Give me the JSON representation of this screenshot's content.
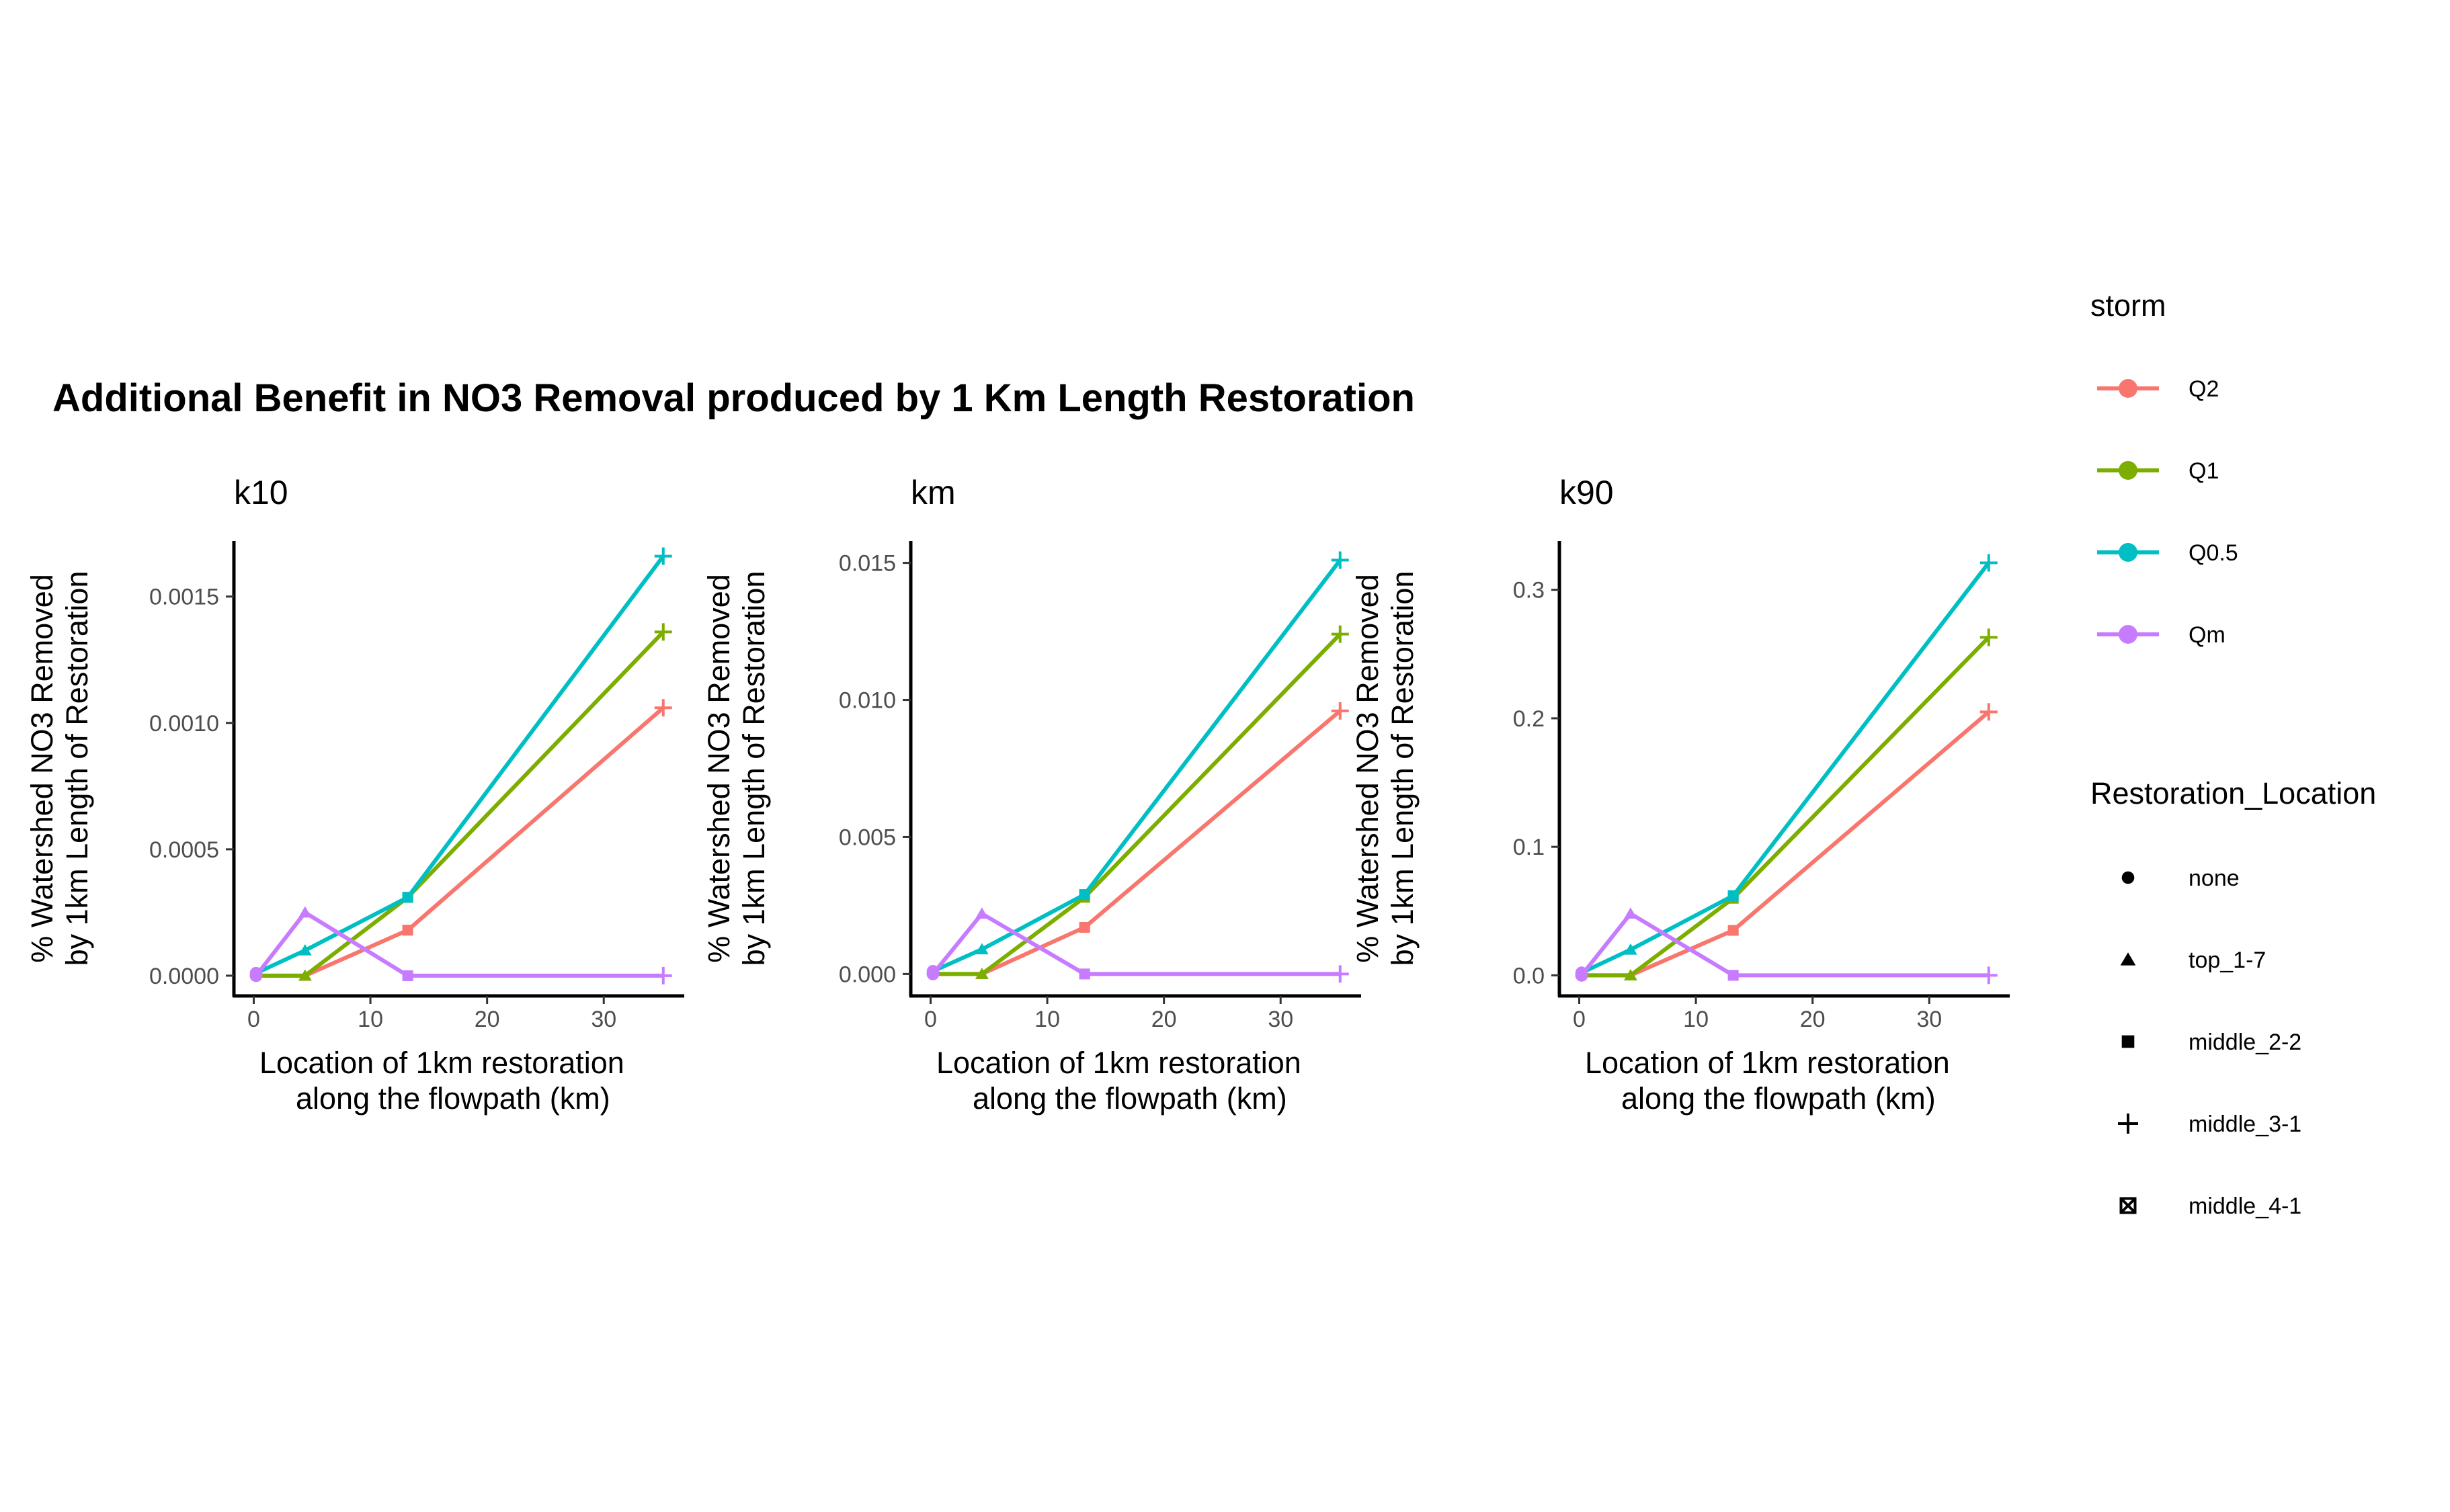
{
  "chart_data": {
    "type": "line",
    "title": "Additional Benefit in NO3 Removal produced by 1 Km Length Restoration",
    "x": [
      0.2,
      4.4,
      13.2,
      35.1
    ],
    "x_ticks": [
      "0",
      "10",
      "20",
      "30"
    ],
    "xlim": [
      -1.7,
      36.9
    ],
    "xlabel": "Location of 1km restoration\n    along the flowpath (km)",
    "ylabel": "% Watershed NO3 Removed\nby 1km Length of Restoration",
    "point_shapes": [
      "top_1-7",
      "middle_2-2",
      "middle_3-1",
      "middle_4-1"
    ],
    "point_shape_note": "Shape per point follows x position; the Qm series at x=4.4 is drawn with the middle_2-2 square. The first point of every series is drawn as a filled circle in the Qm colour on top.",
    "panels": [
      {
        "name": "k10",
        "ylim": [
          -8e-05,
          0.00172
        ],
        "y_ticks": [
          "0.0000",
          "0.0005",
          "0.0010",
          "0.0015"
        ],
        "series": [
          {
            "name": "Q2",
            "values": [
              0,
              0,
              0.00018,
              0.00106
            ]
          },
          {
            "name": "Q1",
            "values": [
              0,
              0,
              0.00031,
              0.00136
            ]
          },
          {
            "name": "Q0.5",
            "values": [
              1e-05,
              0.0001,
              0.00031,
              0.00166
            ]
          },
          {
            "name": "Qm",
            "values": [
              0,
              0.00025,
              0,
              0
            ]
          }
        ]
      },
      {
        "name": "km",
        "ylim": [
          -0.0008,
          0.0158
        ],
        "y_ticks": [
          "0.000",
          "0.005",
          "0.010",
          "0.015"
        ],
        "series": [
          {
            "name": "Q2",
            "values": [
              0,
              0,
              0.0017,
              0.0096
            ]
          },
          {
            "name": "Q1",
            "values": [
              0,
              0,
              0.0028,
              0.0124
            ]
          },
          {
            "name": "Q0.5",
            "values": [
              0.0001,
              0.0009,
              0.0029,
              0.0151
            ]
          },
          {
            "name": "Qm",
            "values": [
              0,
              0.0022,
              0,
              0
            ]
          }
        ]
      },
      {
        "name": "k90",
        "ylim": [
          -0.016,
          0.338
        ],
        "y_ticks": [
          "0.0",
          "0.1",
          "0.2",
          "0.3"
        ],
        "series": [
          {
            "name": "Q2",
            "values": [
              0,
              0,
              0.035,
              0.205
            ]
          },
          {
            "name": "Q1",
            "values": [
              0,
              0,
              0.06,
              0.263
            ]
          },
          {
            "name": "Q0.5",
            "values": [
              0.002,
              0.02,
              0.062,
              0.321
            ]
          },
          {
            "name": "Qm",
            "values": [
              0,
              0.048,
              0,
              0
            ]
          }
        ]
      }
    ],
    "legend": {
      "placement": "right",
      "storm": {
        "title": "storm",
        "items": [
          {
            "label": "Q2",
            "color": "#F8766D"
          },
          {
            "label": "Q1",
            "color": "#7CAE00"
          },
          {
            "label": "Q0.5",
            "color": "#00BFC4"
          },
          {
            "label": "Qm",
            "color": "#C77CFF"
          }
        ]
      },
      "restoration": {
        "title": "Restoration_Location",
        "items": [
          {
            "label": "none",
            "shape": "circle"
          },
          {
            "label": "top_1-7",
            "shape": "triangle"
          },
          {
            "label": "middle_2-2",
            "shape": "square"
          },
          {
            "label": "middle_3-1",
            "shape": "plus"
          },
          {
            "label": "middle_4-1",
            "shape": "boxed-x"
          }
        ]
      }
    },
    "grid": false
  }
}
